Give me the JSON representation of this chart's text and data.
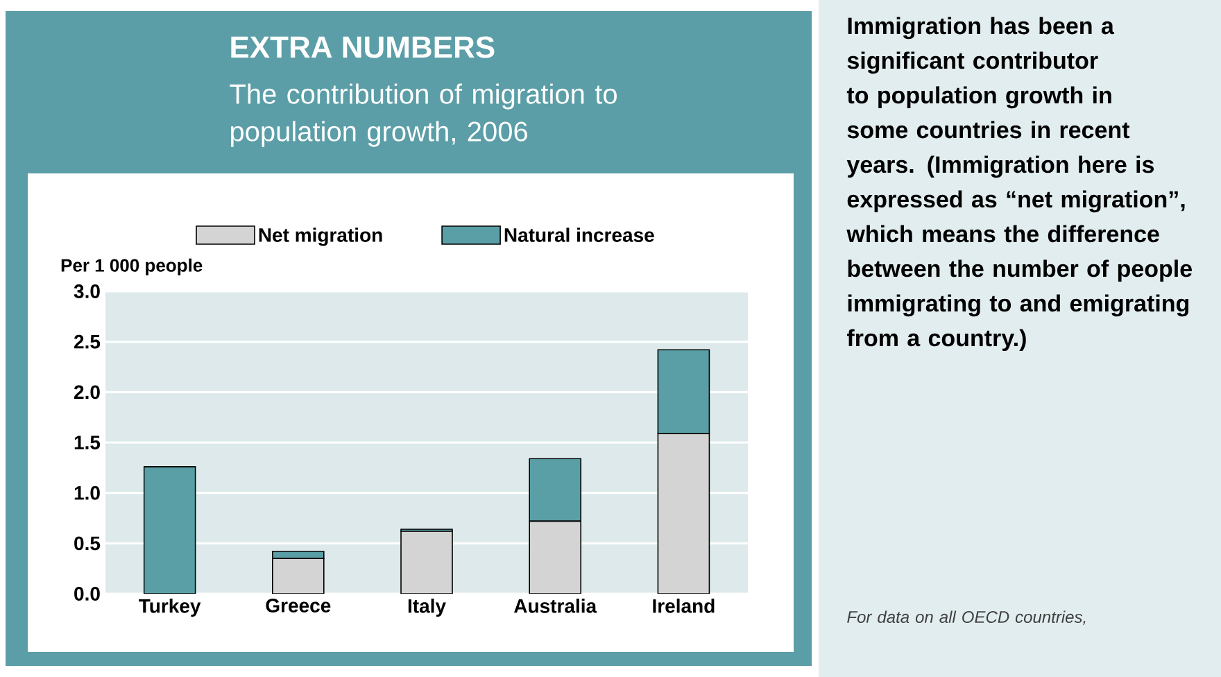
{
  "chart_data": {
    "type": "bar",
    "title": "EXTRA NUMBERS",
    "subtitle": "The contribution of migration to population growth, 2006",
    "ylabel": "Per 1 000 people",
    "categories": [
      "Turkey",
      "Greece",
      "Italy",
      "Australia",
      "Ireland"
    ],
    "series": [
      {
        "name": "Net migration",
        "color": "#d4d4d4",
        "values": [
          0,
          0.35,
          0.62,
          0.72,
          1.59
        ]
      },
      {
        "name": "Natural increase",
        "color": "#5a9fa6",
        "values": [
          1.26,
          0.07,
          0.02,
          0.62,
          0.83
        ]
      }
    ],
    "stacked": true,
    "ylim": [
      0,
      3
    ],
    "yticks": [
      {
        "value": 0,
        "label": "0.0"
      },
      {
        "value": 0.5,
        "label": "0.5"
      },
      {
        "value": 1,
        "label": "1.0"
      },
      {
        "value": 1.5,
        "label": "1.5"
      },
      {
        "value": 2,
        "label": "2.0"
      },
      {
        "value": 2.5,
        "label": "2.5"
      },
      {
        "value": 3,
        "label": "3.0"
      }
    ],
    "grid": "y",
    "legend": "top",
    "annotations": [
      "Immigration has been a significant contributor to population growth in some countries in recent years. (Immigration here is expressed as “net migration”, which means the difference between the number of people immigrating to and emigrating from a country.)",
      "For data on all OECD countries,"
    ]
  }
}
